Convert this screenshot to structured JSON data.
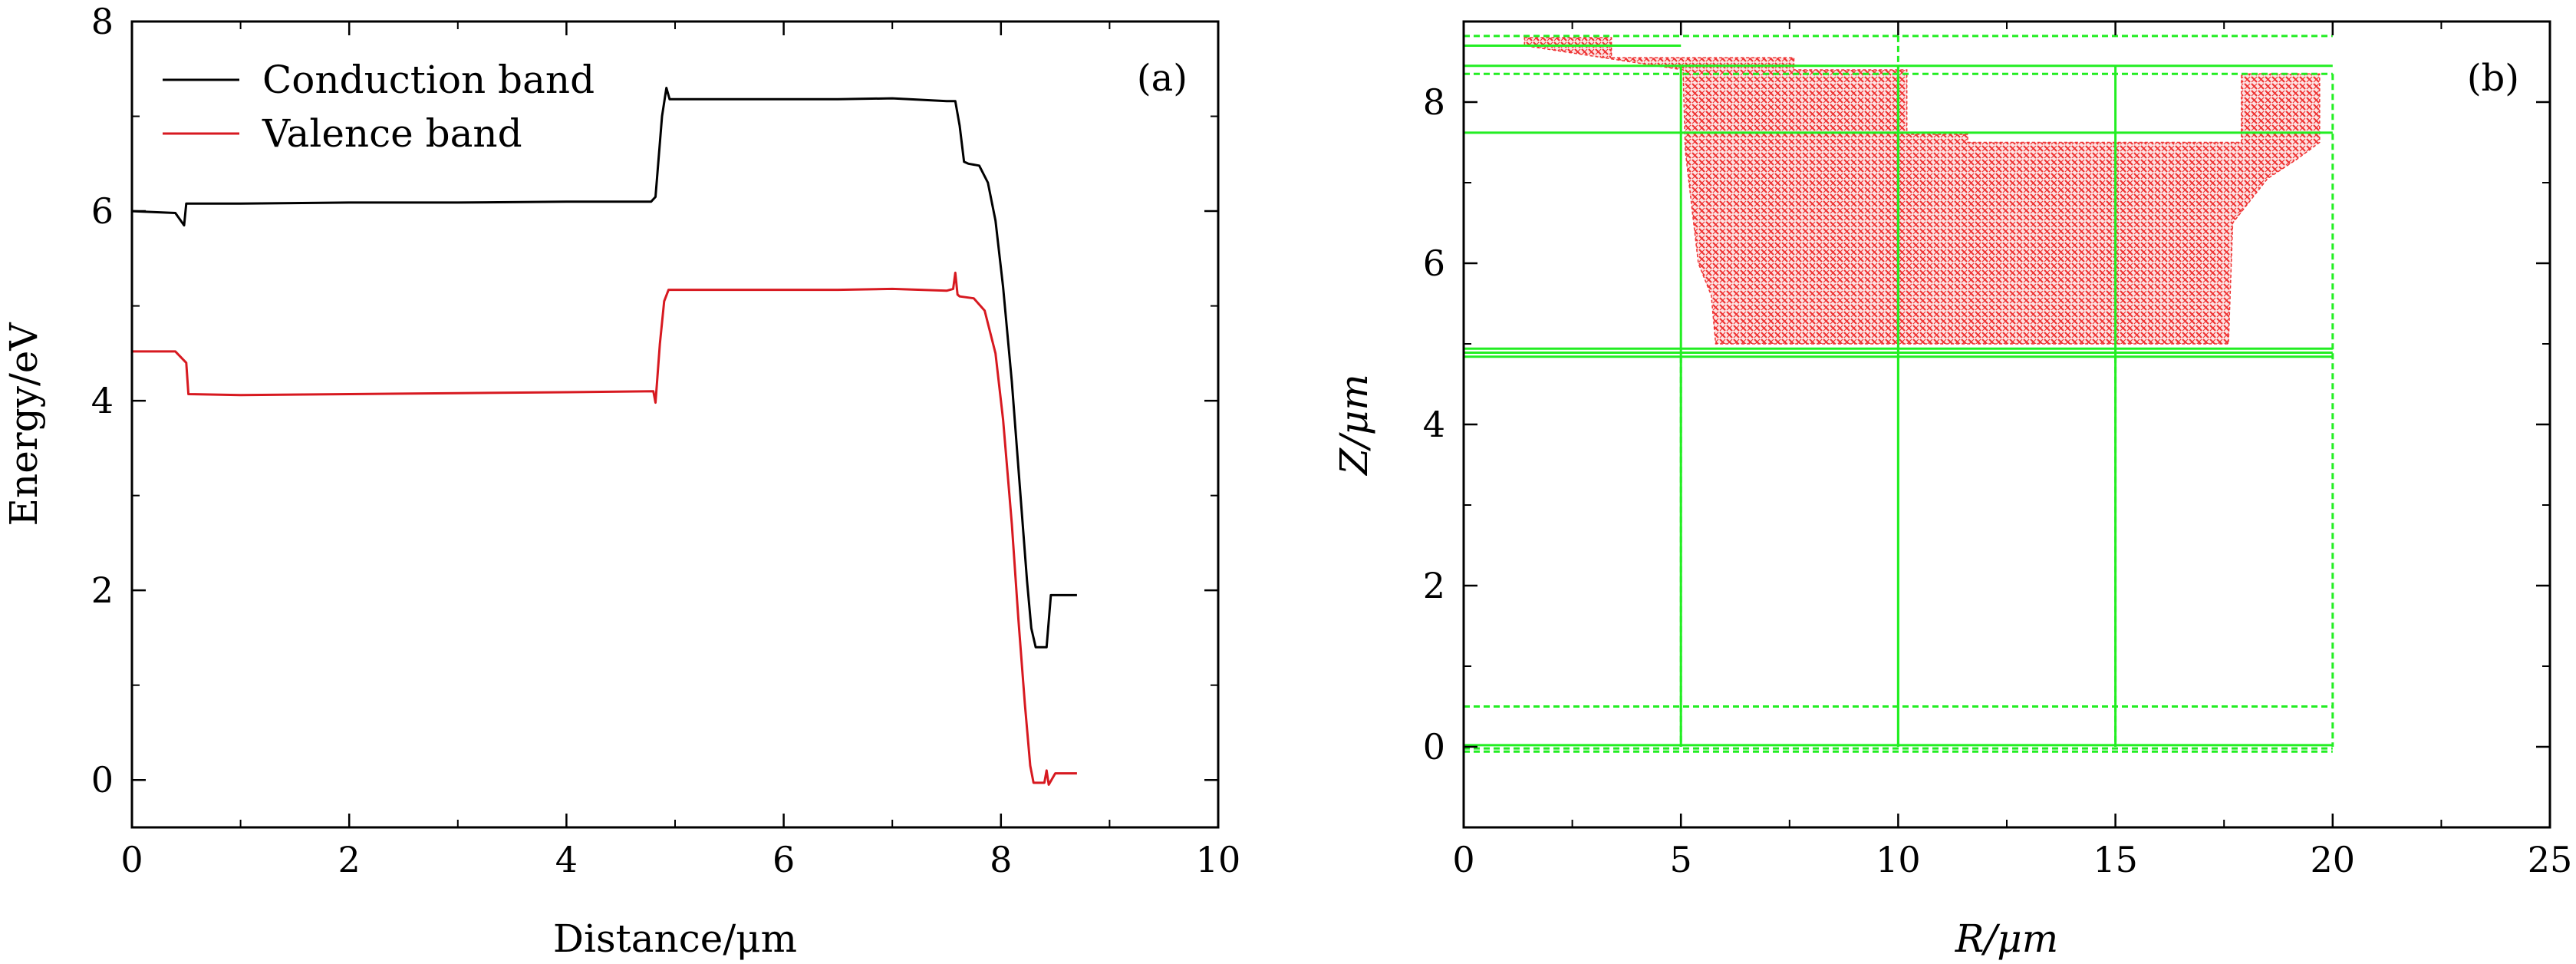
{
  "chart_data": [
    {
      "panel": "(a)",
      "type": "line",
      "xlabel": "Distance/μm",
      "ylabel": "Energy/eV",
      "xlim": [
        0,
        10
      ],
      "ylim": [
        -0.5,
        8
      ],
      "xticks": [
        0,
        2,
        4,
        6,
        8,
        10
      ],
      "yticks": [
        0,
        2,
        4,
        6,
        8
      ],
      "legend_position": "top-left",
      "series": [
        {
          "name": "Conduction band",
          "color": "#000000",
          "points": [
            [
              0,
              6.0
            ],
            [
              0.4,
              5.98
            ],
            [
              0.48,
              5.85
            ],
            [
              0.5,
              6.08
            ],
            [
              1.0,
              6.08
            ],
            [
              2.0,
              6.09
            ],
            [
              3.0,
              6.09
            ],
            [
              4.0,
              6.1
            ],
            [
              4.78,
              6.1
            ],
            [
              4.82,
              6.15
            ],
            [
              4.88,
              7.0
            ],
            [
              4.92,
              7.3
            ],
            [
              4.95,
              7.18
            ],
            [
              5.5,
              7.18
            ],
            [
              6.0,
              7.18
            ],
            [
              6.5,
              7.18
            ],
            [
              7.0,
              7.19
            ],
            [
              7.5,
              7.16
            ],
            [
              7.58,
              7.16
            ],
            [
              7.62,
              6.9
            ],
            [
              7.66,
              6.52
            ],
            [
              7.7,
              6.5
            ],
            [
              7.8,
              6.48
            ],
            [
              7.88,
              6.3
            ],
            [
              7.95,
              5.9
            ],
            [
              8.02,
              5.2
            ],
            [
              8.1,
              4.2
            ],
            [
              8.18,
              3.0
            ],
            [
              8.24,
              2.1
            ],
            [
              8.28,
              1.6
            ],
            [
              8.32,
              1.4
            ],
            [
              8.42,
              1.4
            ],
            [
              8.46,
              1.95
            ],
            [
              8.55,
              1.95
            ],
            [
              8.7,
              1.95
            ]
          ]
        },
        {
          "name": "Valence band",
          "color": "#d71920",
          "points": [
            [
              0,
              4.52
            ],
            [
              0.4,
              4.52
            ],
            [
              0.5,
              4.4
            ],
            [
              0.52,
              4.07
            ],
            [
              1.0,
              4.06
            ],
            [
              2.0,
              4.07
            ],
            [
              3.0,
              4.08
            ],
            [
              4.0,
              4.09
            ],
            [
              4.8,
              4.1
            ],
            [
              4.82,
              3.98
            ],
            [
              4.86,
              4.6
            ],
            [
              4.9,
              5.05
            ],
            [
              4.94,
              5.17
            ],
            [
              5.5,
              5.17
            ],
            [
              6.0,
              5.17
            ],
            [
              6.5,
              5.17
            ],
            [
              7.0,
              5.18
            ],
            [
              7.5,
              5.16
            ],
            [
              7.56,
              5.18
            ],
            [
              7.58,
              5.35
            ],
            [
              7.6,
              5.12
            ],
            [
              7.62,
              5.1
            ],
            [
              7.75,
              5.08
            ],
            [
              7.85,
              4.95
            ],
            [
              7.95,
              4.5
            ],
            [
              8.02,
              3.8
            ],
            [
              8.1,
              2.7
            ],
            [
              8.16,
              1.7
            ],
            [
              8.22,
              0.8
            ],
            [
              8.27,
              0.15
            ],
            [
              8.3,
              -0.03
            ],
            [
              8.4,
              -0.03
            ],
            [
              8.42,
              0.1
            ],
            [
              8.44,
              -0.05
            ],
            [
              8.5,
              0.07
            ],
            [
              8.7,
              0.07
            ]
          ]
        }
      ]
    },
    {
      "panel": "(b)",
      "type": "mesh",
      "xlabel": "R/μm",
      "ylabel": "Z/μm",
      "xlim": [
        0,
        25
      ],
      "ylim": [
        -1,
        9
      ],
      "xticks": [
        0,
        5,
        10,
        15,
        20,
        25
      ],
      "yticks": [
        0,
        2,
        4,
        6,
        8
      ],
      "mesh_color": "#22ee22",
      "field_color": "#ee3333",
      "field_region": [
        [
          1.4,
          8.8
        ],
        [
          3.4,
          8.8
        ],
        [
          3.4,
          8.55
        ],
        [
          7.6,
          8.55
        ],
        [
          7.6,
          8.4
        ],
        [
          10.2,
          8.4
        ],
        [
          10.2,
          7.6
        ],
        [
          11.6,
          7.6
        ],
        [
          11.6,
          7.5
        ],
        [
          17.9,
          7.5
        ],
        [
          17.9,
          8.35
        ],
        [
          19.7,
          8.35
        ],
        [
          19.7,
          7.5
        ],
        [
          19.2,
          7.3
        ],
        [
          18.5,
          7.05
        ],
        [
          17.7,
          6.5
        ],
        [
          17.6,
          5.0
        ],
        [
          5.8,
          5.0
        ],
        [
          5.7,
          5.6
        ],
        [
          5.4,
          6.0
        ],
        [
          5.1,
          7.4
        ],
        [
          5.05,
          8.4
        ],
        [
          1.4,
          8.7
        ]
      ],
      "solid_h_lines": [
        [
          0,
          8.7,
          5,
          8.7
        ],
        [
          0,
          8.45,
          20,
          8.45
        ],
        [
          0,
          7.62,
          20,
          7.62
        ],
        [
          0,
          4.84,
          20,
          4.84
        ],
        [
          0,
          4.89,
          20,
          4.89
        ],
        [
          0,
          4.94,
          20,
          4.94
        ],
        [
          0,
          0.02,
          20,
          0.02
        ]
      ],
      "dashed_h_lines": [
        [
          0,
          8.82,
          20,
          8.82
        ],
        [
          0,
          8.35,
          20,
          8.35
        ],
        [
          0,
          0.5,
          20,
          0.5
        ],
        [
          0,
          -0.02,
          20,
          -0.02
        ],
        [
          0,
          -0.06,
          20,
          -0.06
        ]
      ],
      "solid_v_lines": [
        [
          5,
          8.45,
          5,
          0
        ],
        [
          10,
          8.45,
          10,
          0
        ],
        [
          15,
          8.45,
          15,
          0
        ],
        [
          10,
          4.84,
          10,
          0
        ]
      ],
      "dashed_v_lines": [
        [
          5,
          4.84,
          5,
          0
        ],
        [
          10,
          8.82,
          10,
          4.84
        ],
        [
          15,
          4.84,
          15,
          0
        ],
        [
          20,
          8.35,
          20,
          0
        ]
      ]
    }
  ]
}
